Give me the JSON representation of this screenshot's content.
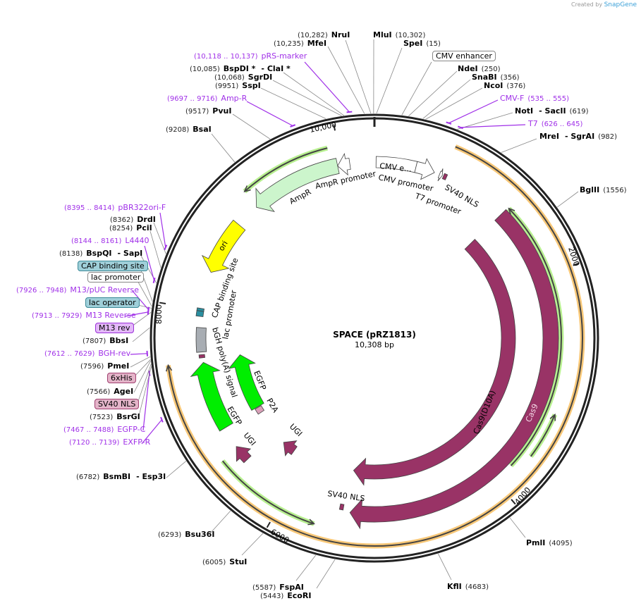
{
  "credit": {
    "prefix": "Created by",
    "brand": "SnapGene"
  },
  "plasmid": {
    "name": "SPACE (pRZ1813)",
    "length_label": "10,308 bp",
    "length_bp": 10308
  },
  "ticks": [
    {
      "bp": 2000,
      "label": "2000"
    },
    {
      "bp": 4000,
      "label": "4000"
    },
    {
      "bp": 6000,
      "label": "6000"
    },
    {
      "bp": 8000,
      "label": "8000"
    },
    {
      "bp": 10000,
      "label": "10,000"
    }
  ],
  "colors": {
    "backbone": "#222222",
    "primer": "#a030e8",
    "cas9": "#993366",
    "egfp": "#00ee00",
    "ampr": "#ccf5cc",
    "ori": "#ffff00",
    "orf_orange": "#f8c878",
    "orf_green": "#b8f090"
  },
  "features": [
    {
      "name": "Cas9",
      "start": 1306,
      "end": 5383,
      "dir": 1,
      "color": "#993366"
    },
    {
      "name": "Cas9(D10A)",
      "start": 1300,
      "end": 5411,
      "dir": 1,
      "color": "#993366"
    },
    {
      "name": "AmpR",
      "start": 9105,
      "end": 9963,
      "dir": -1,
      "color": "#ccf5cc"
    },
    {
      "name": "AmpR promoter",
      "start": 9963,
      "end": 10078,
      "dir": -1,
      "color": "#ffffff"
    },
    {
      "name": "ori",
      "start": 8360,
      "end": 8875,
      "dir": -1,
      "color": "#ffff00"
    },
    {
      "name": "CMV e...",
      "start": 15,
      "end": 390,
      "dir": 0,
      "color": "#ffffff"
    },
    {
      "name": "CMV promoter",
      "start": 390,
      "end": 570,
      "dir": 1,
      "color": "#ffffff"
    },
    {
      "name": "T7 promoter",
      "start": 620,
      "end": 648,
      "dir": 1,
      "color": "#ffffff"
    },
    {
      "name": "SV40 NLS",
      "start": 660,
      "end": 690,
      "dir": 0,
      "color": "#993366"
    },
    {
      "name": "EGFP",
      "start": 6843,
      "end": 7500,
      "dir": 1,
      "color": "#00ee00"
    },
    {
      "name": "bGH poly(A) signal",
      "start": 7600,
      "end": 7830,
      "dir": 0,
      "color": "#a8adb3"
    },
    {
      "name": "EGFP",
      "start": 6858,
      "end": 7530,
      "dir": 1,
      "color": "#00ee00"
    },
    {
      "name": "P2A",
      "start": 6780,
      "end": 6850,
      "dir": 0,
      "color": "#d9a0b8"
    },
    {
      "name": "UGI",
      "start": 6480,
      "end": 6640,
      "dir": 1,
      "color": "#993366"
    },
    {
      "name": "UGI",
      "start": 6170,
      "end": 6330,
      "dir": 1,
      "color": "#993366"
    },
    {
      "name": "SV40 NLS",
      "start": 5450,
      "end": 5485,
      "dir": 0,
      "color": "#993366"
    },
    {
      "name": "CAP binding site",
      "start": 7985,
      "end": 8010,
      "dir": 0,
      "color": "#2a8fa0"
    },
    {
      "name": "lac promoter",
      "start": 7935,
      "end": 7985,
      "dir": 0,
      "color": "#2a8fa0"
    },
    {
      "name": "6xHis",
      "start": 7545,
      "end": 7575,
      "dir": 0,
      "color": "#993366"
    }
  ],
  "orfs": [
    {
      "start": 656,
      "end": 7516,
      "dir": 1,
      "color": "orange"
    },
    {
      "start": 9120,
      "end": 9910,
      "dir": -1,
      "color": "green"
    },
    {
      "start": 1317,
      "end": 3810,
      "dir": -1,
      "color": "green"
    },
    {
      "start": 3235,
      "end": 3640,
      "dir": -1,
      "color": "green"
    },
    {
      "start": 5670,
      "end": 6615,
      "dir": -1,
      "color": "green"
    }
  ],
  "sites": [
    {
      "kind": "enzyme",
      "name": "NruI",
      "pos": "(10,282)",
      "bp": 10282
    },
    {
      "kind": "enzyme",
      "name": "MfeI",
      "pos": "(10,235)",
      "bp": 10235
    },
    {
      "kind": "enzyme",
      "name": "MluI",
      "pos": "(10,302)",
      "bp": 10302
    },
    {
      "kind": "enzyme",
      "name": "SpeI",
      "pos": "(15)",
      "bp": 15
    },
    {
      "kind": "primer",
      "name": "pRS-marker",
      "pos": "(10,118 .. 10,137)",
      "bp": 10127
    },
    {
      "kind": "enzyme",
      "name": "BspDI *",
      "name2": "- ClaI *",
      "pos": "(10,085)",
      "bp": 10085
    },
    {
      "kind": "enzyme",
      "name": "SgrDI",
      "pos": "(10,068)",
      "bp": 10068
    },
    {
      "kind": "enzyme",
      "name": "SspI",
      "pos": "(9951)",
      "bp": 9951
    },
    {
      "kind": "primer",
      "name": "Amp-R",
      "pos": "(9697 .. 9716)",
      "bp": 9706
    },
    {
      "kind": "enzyme",
      "name": "PvuI",
      "pos": "(9517)",
      "bp": 9517
    },
    {
      "kind": "enzyme",
      "name": "BsaI",
      "pos": "(9208)",
      "bp": 9208
    },
    {
      "kind": "box",
      "style": "white",
      "name": "CMV enhancer",
      "bp": 200
    },
    {
      "kind": "enzyme",
      "name": "NdeI",
      "pos": "(250)",
      "bp": 250
    },
    {
      "kind": "enzyme",
      "name": "SnaBI",
      "pos": "(356)",
      "bp": 356
    },
    {
      "kind": "enzyme",
      "name": "NcoI",
      "pos": "(376)",
      "bp": 376
    },
    {
      "kind": "primer",
      "name": "CMV-F",
      "pos": "(535 .. 555)",
      "bp": 545
    },
    {
      "kind": "enzyme",
      "name": "NotI",
      "name2": "- SacII",
      "pos": "(619)",
      "bp": 619
    },
    {
      "kind": "primer",
      "name": "T7",
      "pos": "(626 .. 645)",
      "bp": 635
    },
    {
      "kind": "enzyme",
      "name": "MreI",
      "name2": "- SgrAI",
      "pos": "(982)",
      "bp": 982
    },
    {
      "kind": "enzyme",
      "name": "BglII",
      "pos": "(1556)",
      "bp": 1556
    },
    {
      "kind": "enzyme",
      "name": "PmlI",
      "pos": "(4095)",
      "bp": 4095
    },
    {
      "kind": "enzyme",
      "name": "KflI",
      "pos": "(4683)",
      "bp": 4683
    },
    {
      "kind": "enzyme",
      "name": "EcoRI",
      "pos": "(5443)",
      "bp": 5443
    },
    {
      "kind": "enzyme",
      "name": "FspAI",
      "pos": "(5587)",
      "bp": 5587
    },
    {
      "kind": "enzyme",
      "name": "StuI",
      "pos": "(6005)",
      "bp": 6005
    },
    {
      "kind": "enzyme",
      "name": "Bsu36I",
      "pos": "(6293)",
      "bp": 6293
    },
    {
      "kind": "enzyme",
      "name": "BsmBI",
      "name2": "- Esp3I",
      "pos": "(6782)",
      "bp": 6782
    },
    {
      "kind": "primer",
      "name": "EXFP-R",
      "pos": "(7120 .. 7139)",
      "bp": 7130
    },
    {
      "kind": "primer",
      "name": "EGFP-C",
      "pos": "(7467 .. 7488)",
      "bp": 7477
    },
    {
      "kind": "enzyme",
      "name": "BsrGI",
      "pos": "(7523)",
      "bp": 7523
    },
    {
      "kind": "box",
      "style": "pink",
      "name": "SV40 NLS",
      "bp": 7540
    },
    {
      "kind": "enzyme",
      "name": "AgeI",
      "pos": "(7566)",
      "bp": 7566
    },
    {
      "kind": "box",
      "style": "pink",
      "name": "6xHis",
      "bp": 7575
    },
    {
      "kind": "enzyme",
      "name": "PmeI",
      "pos": "(7596)",
      "bp": 7596
    },
    {
      "kind": "primer",
      "name": "BGH-rev",
      "pos": "(7612 .. 7629)",
      "bp": 7620
    },
    {
      "kind": "enzyme",
      "name": "BbsI",
      "pos": "(7807)",
      "bp": 7807
    },
    {
      "kind": "box",
      "style": "purple",
      "name": "M13 rev",
      "bp": 7920
    },
    {
      "kind": "primer",
      "name": "M13 Reverse",
      "pos": "(7913 .. 7929)",
      "bp": 7920
    },
    {
      "kind": "box",
      "style": "teal",
      "name": "lac operator",
      "bp": 7950
    },
    {
      "kind": "primer",
      "name": "M13/pUC Reverse",
      "pos": "(7926 .. 7948)",
      "bp": 7937
    },
    {
      "kind": "box",
      "style": "white",
      "name": "lac promoter",
      "bp": 7965
    },
    {
      "kind": "box",
      "style": "teal",
      "name": "CAP binding site",
      "bp": 8000
    },
    {
      "kind": "enzyme",
      "name": "BspQI",
      "name2": "- SapI",
      "pos": "(8138)",
      "bp": 8138
    },
    {
      "kind": "primer",
      "name": "L4440",
      "pos": "(8144 .. 8161)",
      "bp": 8152
    },
    {
      "kind": "enzyme",
      "name": "PciI",
      "pos": "(8254)",
      "bp": 8254
    },
    {
      "kind": "enzyme",
      "name": "DrdI",
      "pos": "(8362)",
      "bp": 8362
    },
    {
      "kind": "primer",
      "name": "pBR322ori-F",
      "pos": "(8395 .. 8414)",
      "bp": 8404
    }
  ]
}
